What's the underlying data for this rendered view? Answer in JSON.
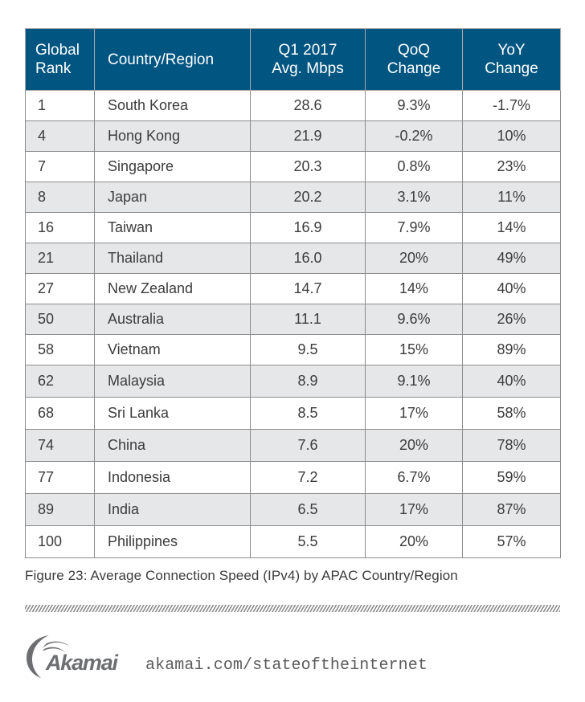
{
  "table": {
    "headers": [
      {
        "line1": "Global",
        "line2": "Rank"
      },
      {
        "line1": "Country/Region",
        "line2": ""
      },
      {
        "line1": "Q1 2017",
        "line2": "Avg. Mbps"
      },
      {
        "line1": "QoQ",
        "line2": "Change"
      },
      {
        "line1": "YoY",
        "line2": "Change"
      }
    ],
    "rows": [
      {
        "rank": "1",
        "country": "South Korea",
        "avg_mbps": "28.6",
        "qoq": "9.3%",
        "yoy": "-1.7%"
      },
      {
        "rank": "4",
        "country": "Hong Kong",
        "avg_mbps": "21.9",
        "qoq": "-0.2%",
        "yoy": "10%"
      },
      {
        "rank": "7",
        "country": "Singapore",
        "avg_mbps": "20.3",
        "qoq": "0.8%",
        "yoy": "23%"
      },
      {
        "rank": "8",
        "country": "Japan",
        "avg_mbps": "20.2",
        "qoq": "3.1%",
        "yoy": "11%"
      },
      {
        "rank": "16",
        "country": "Taiwan",
        "avg_mbps": "16.9",
        "qoq": "7.9%",
        "yoy": "14%"
      },
      {
        "rank": "21",
        "country": "Thailand",
        "avg_mbps": "16.0",
        "qoq": "20%",
        "yoy": "49%"
      },
      {
        "rank": "27",
        "country": "New Zealand",
        "avg_mbps": "14.7",
        "qoq": "14%",
        "yoy": "40%"
      },
      {
        "rank": "50",
        "country": "Australia",
        "avg_mbps": "11.1",
        "qoq": "9.6%",
        "yoy": "26%"
      },
      {
        "rank": "58",
        "country": "Vietnam",
        "avg_mbps": "9.5",
        "qoq": "15%",
        "yoy": "89%"
      },
      {
        "rank": "62",
        "country": "Malaysia",
        "avg_mbps": "8.9",
        "qoq": "9.1%",
        "yoy": "40%"
      },
      {
        "rank": "68",
        "country": "Sri Lanka",
        "avg_mbps": "8.5",
        "qoq": "17%",
        "yoy": "58%"
      },
      {
        "rank": "74",
        "country": "China",
        "avg_mbps": "7.6",
        "qoq": "20%",
        "yoy": "78%"
      },
      {
        "rank": "77",
        "country": "Indonesia",
        "avg_mbps": "7.2",
        "qoq": "6.7%",
        "yoy": "59%"
      },
      {
        "rank": "89",
        "country": "India",
        "avg_mbps": "6.5",
        "qoq": "17%",
        "yoy": "87%"
      },
      {
        "rank": "100",
        "country": "Philippines",
        "avg_mbps": "5.5",
        "qoq": "20%",
        "yoy": "57%"
      }
    ]
  },
  "caption": "Figure 23: Average Connection Speed (IPv4) by APAC Country/Region",
  "footer": {
    "logo_text": "Akamai",
    "logo_icon": "akamai-wave-icon",
    "url": "akamai.com/stateoftheinternet"
  },
  "colors": {
    "header_bg": "#005581",
    "row_shade": "#e6e7e8",
    "logo_gray": "#6d6e71"
  }
}
